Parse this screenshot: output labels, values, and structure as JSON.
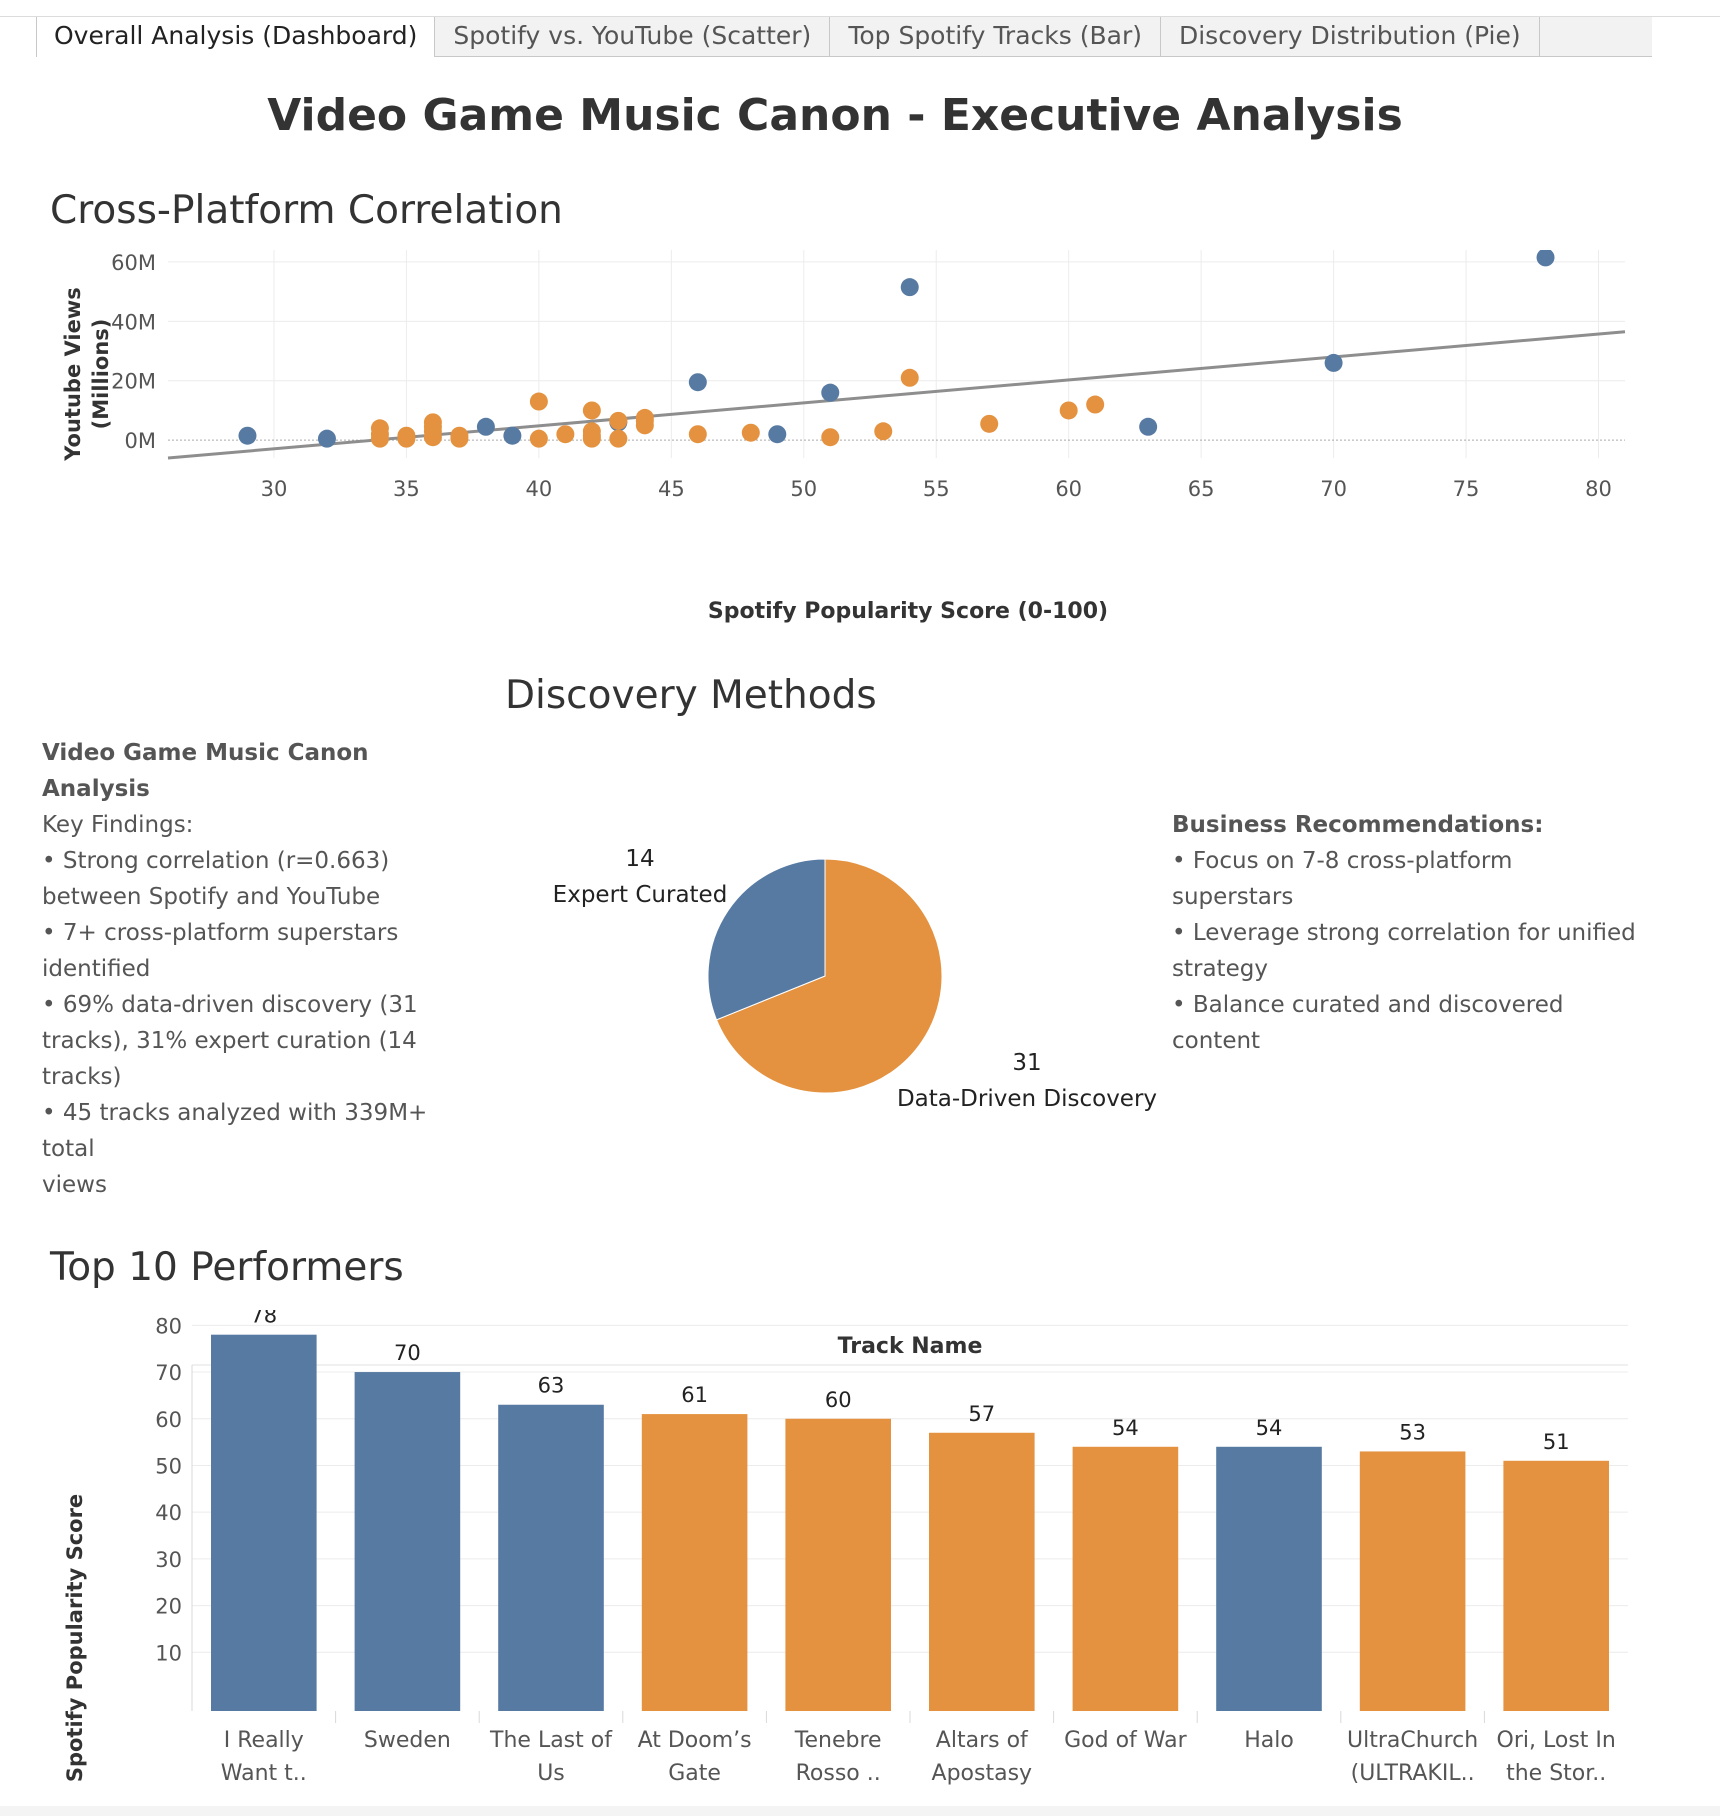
{
  "tabs": [
    {
      "label": "Overall Analysis (Dashboard)",
      "active": true
    },
    {
      "label": "Spotify vs. YouTube (Scatter)",
      "active": false
    },
    {
      "label": "Top Spotify Tracks (Bar)",
      "active": false
    },
    {
      "label": "Discovery Distribution (Pie)",
      "active": false
    }
  ],
  "title": "Video Game Music Canon - Executive Analysis",
  "colors": {
    "blue": "#577aa3",
    "orange": "#e4923f",
    "trend": "#8e8e8e"
  },
  "scatter": {
    "title": "Cross-Platform Correlation",
    "xlabel": "Spotify Popularity Score (0-100)",
    "ylabel_lines": [
      "Youtube Views",
      "(Millions)"
    ],
    "xticks": [
      "30",
      "35",
      "40",
      "45",
      "50",
      "55",
      "60",
      "65",
      "70",
      "75",
      "80"
    ],
    "yticks": [
      "0M",
      "20M",
      "40M",
      "60M"
    ]
  },
  "pie": {
    "title": "Discovery Methods",
    "slices": [
      {
        "value": "14",
        "label": "Expert Curated"
      },
      {
        "value": "31",
        "label": "Data-Driven Discovery"
      }
    ]
  },
  "findings": {
    "heading": "Video Game Music Canon Analysis",
    "lines": [
      "Key Findings:",
      "• Strong correlation (r=0.663)",
      "between Spotify and YouTube",
      "• 7+ cross-platform superstars",
      "identified",
      "• 69% data-driven discovery (31",
      "tracks), 31% expert curation (14",
      "tracks)",
      "• 45 tracks analyzed with 339M+ total",
      "views"
    ]
  },
  "recommendations": {
    "heading": "Business Recommendations:",
    "lines": [
      "• Focus on 7-8 cross-platform",
      "superstars",
      "• Leverage strong correlation for unified",
      "strategy",
      "• Balance curated and discovered",
      "content"
    ]
  },
  "bar": {
    "title": "Top 10 Performers",
    "header": "Track Name",
    "ylabel": "Spotify Popularity Score",
    "yticks": [
      "10",
      "20",
      "30",
      "40",
      "50",
      "60",
      "70",
      "80"
    ]
  },
  "chart_data": [
    {
      "type": "scatter",
      "title": "Cross-Platform Correlation",
      "xlabel": "Spotify Popularity Score (0-100)",
      "ylabel": "Youtube Views (Millions)",
      "xlim": [
        26,
        81
      ],
      "ylim": [
        -6,
        64
      ],
      "grid": true,
      "trendline": {
        "x": [
          26,
          81
        ],
        "y": [
          -6,
          36.5
        ]
      },
      "series": [
        {
          "color": "blue",
          "points": [
            [
              29,
              1.5
            ],
            [
              32,
              0.5
            ],
            [
              38,
              4.5
            ],
            [
              39,
              1.5
            ],
            [
              43,
              6
            ],
            [
              46,
              19.5
            ],
            [
              49,
              2
            ],
            [
              51,
              16
            ],
            [
              54,
              51.5
            ],
            [
              63,
              4.5
            ],
            [
              70,
              26
            ],
            [
              78,
              61.5
            ]
          ]
        },
        {
          "color": "orange",
          "points": [
            [
              34,
              0.5
            ],
            [
              34,
              2
            ],
            [
              34,
              4
            ],
            [
              35,
              0.5
            ],
            [
              35,
              1.5
            ],
            [
              36,
              1
            ],
            [
              36,
              3
            ],
            [
              36,
              4.5
            ],
            [
              36,
              6
            ],
            [
              37,
              0.5
            ],
            [
              37,
              1.5
            ],
            [
              40,
              0.5
            ],
            [
              40,
              13
            ],
            [
              41,
              2
            ],
            [
              42,
              0.5
            ],
            [
              42,
              1.5
            ],
            [
              42,
              3
            ],
            [
              42,
              10
            ],
            [
              43,
              0.5
            ],
            [
              43,
              6.5
            ],
            [
              44,
              5
            ],
            [
              44,
              6.5
            ],
            [
              44,
              7.5
            ],
            [
              46,
              2
            ],
            [
              48,
              2.5
            ],
            [
              51,
              1
            ],
            [
              53,
              3
            ],
            [
              54,
              21
            ],
            [
              57,
              5.5
            ],
            [
              60,
              10
            ],
            [
              61,
              12
            ]
          ]
        }
      ]
    },
    {
      "type": "pie",
      "title": "Discovery Methods",
      "slices": [
        {
          "label": "Expert Curated",
          "value": 14,
          "color": "blue"
        },
        {
          "label": "Data-Driven Discovery",
          "value": 31,
          "color": "orange"
        }
      ]
    },
    {
      "type": "bar",
      "title": "Top 10 Performers",
      "xlabel": "Track Name",
      "ylabel": "Spotify Popularity Score",
      "ylim": [
        0,
        82
      ],
      "categories": [
        [
          "I Really",
          "Want t.."
        ],
        [
          "Sweden"
        ],
        [
          "The Last of",
          "Us"
        ],
        [
          "At Doom’s",
          "Gate"
        ],
        [
          "Tenebre",
          "Rosso .."
        ],
        [
          "Altars of",
          "Apostasy"
        ],
        [
          "God of War"
        ],
        [
          "Halo"
        ],
        [
          "UltraChurch",
          "(ULTRAKIL.."
        ],
        [
          "Ori, Lost In",
          "the Stor.."
        ]
      ],
      "values": [
        78,
        70,
        63,
        61,
        60,
        57,
        54,
        54,
        53,
        51
      ],
      "colors": [
        "blue",
        "blue",
        "blue",
        "orange",
        "orange",
        "orange",
        "orange",
        "blue",
        "orange",
        "orange"
      ]
    }
  ]
}
